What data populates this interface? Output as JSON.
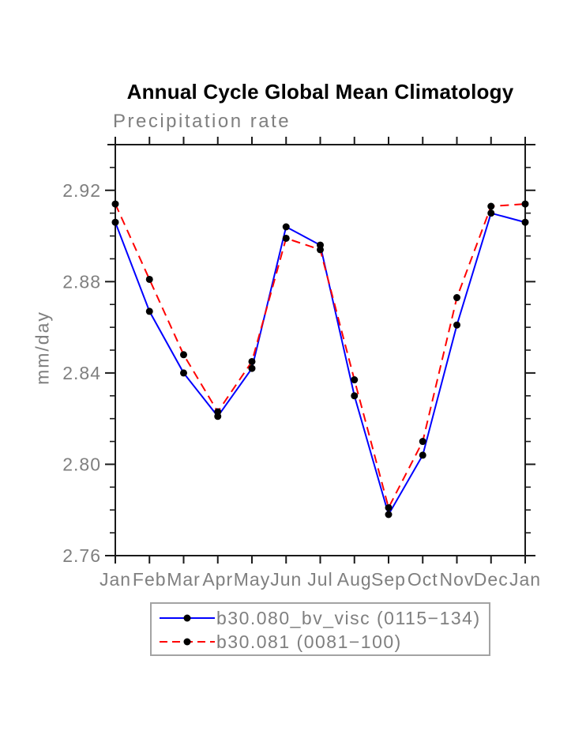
{
  "chart_data": {
    "type": "line",
    "title": "Annual Cycle Global Mean Climatology",
    "subtitle": "Precipitation rate",
    "ylabel": "mm/day",
    "xlabel": "",
    "categories": [
      "Jan",
      "Feb",
      "Mar",
      "Apr",
      "May",
      "Jun",
      "Jul",
      "Aug",
      "Sep",
      "Oct",
      "Nov",
      "Dec",
      "Jan"
    ],
    "series": [
      {
        "name": "b30.080_bv_visc (0115−134)",
        "color": "#0000ff",
        "line_style": "solid",
        "marker": "filled-circle",
        "marker_color": "#000000",
        "values": [
          2.906,
          2.867,
          2.84,
          2.821,
          2.842,
          2.904,
          2.896,
          2.83,
          2.778,
          2.804,
          2.861,
          2.91,
          2.906
        ]
      },
      {
        "name": "b30.081 (0081−100)",
        "color": "#ff0000",
        "line_style": "dashed",
        "marker": "filled-circle",
        "marker_color": "#000000",
        "values": [
          2.914,
          2.881,
          2.848,
          2.823,
          2.845,
          2.899,
          2.894,
          2.837,
          2.781,
          2.81,
          2.873,
          2.913,
          2.914
        ]
      }
    ],
    "ylim": [
      2.76,
      2.94
    ],
    "y_major_ticks": [
      {
        "value": 2.76,
        "label": "2.76"
      },
      {
        "value": 2.8,
        "label": "2.80"
      },
      {
        "value": 2.84,
        "label": "2.84"
      },
      {
        "value": 2.88,
        "label": "2.88"
      },
      {
        "value": 2.92,
        "label": "2.92"
      }
    ],
    "y_minor_step": 0.01,
    "grid": false,
    "tick_direction": "outward",
    "legend_position": "bottom",
    "axis_color": "#1a1a1a",
    "label_color": "#7f7f7f"
  }
}
